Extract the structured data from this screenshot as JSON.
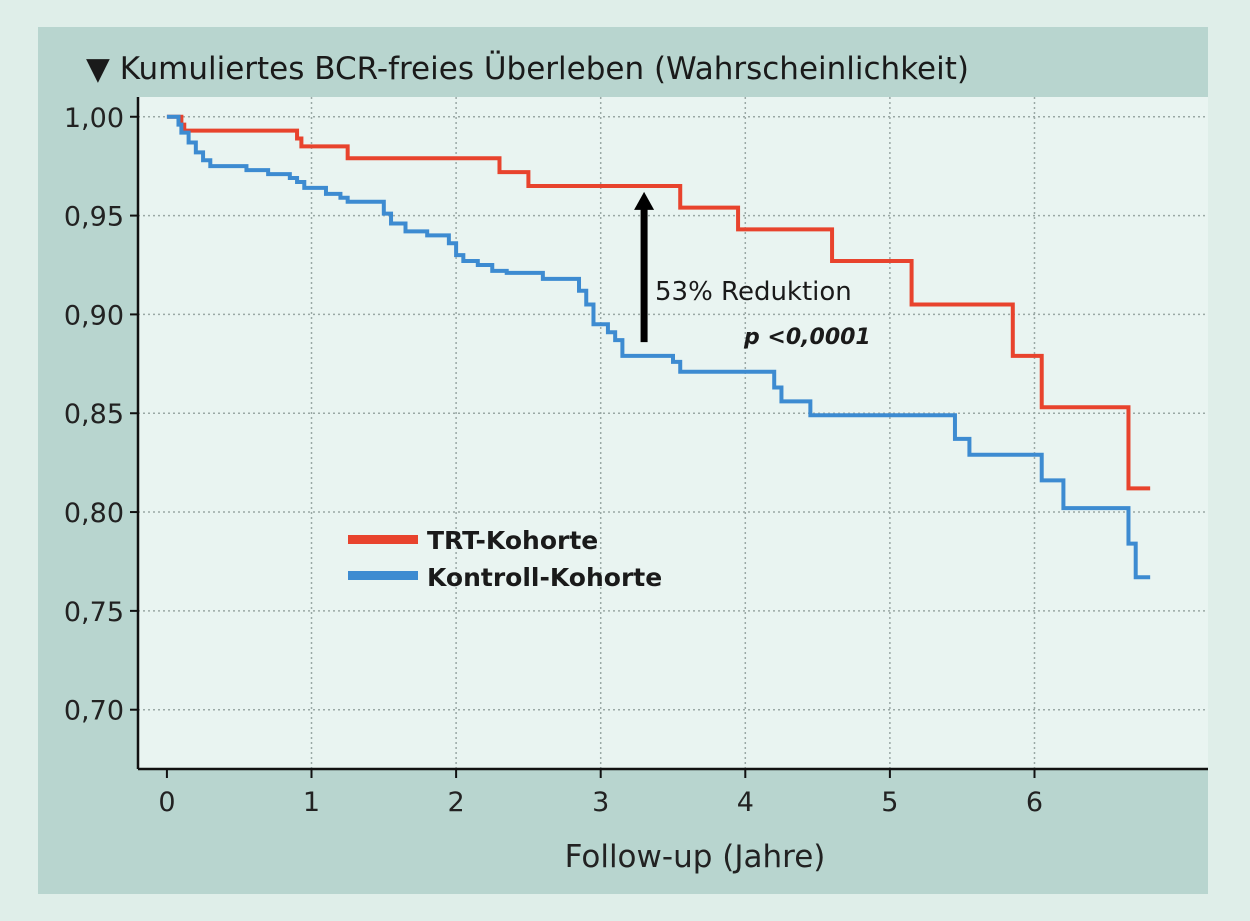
{
  "chart_data": {
    "type": "line",
    "title": "▼ Kumuliertes BCR-freies Überleben (Wahrscheinlichkeit)",
    "xlabel": "Follow-up (Jahre)",
    "ylabel": "",
    "xlim": [
      -0.2,
      7.2
    ],
    "ylim": [
      0.67,
      1.01
    ],
    "x_ticks": [
      0,
      1,
      2,
      3,
      4,
      5,
      6
    ],
    "x_tick_labels": [
      "0",
      "1",
      "2",
      "3",
      "4",
      "5",
      "6"
    ],
    "y_ticks": [
      1.0,
      0.95,
      0.9,
      0.85,
      0.8,
      0.75,
      0.7
    ],
    "y_tick_labels": [
      "1,00",
      "0,95",
      "0,90",
      "0,85",
      "0,80",
      "0,75",
      "0,70"
    ],
    "grid": true,
    "legend_position": "lower-left",
    "series": [
      {
        "name": "TRT-Kohorte",
        "color": "#e8432d",
        "step": true,
        "x": [
          0,
          0.1,
          0.12,
          0.9,
          0.93,
          1.25,
          2.3,
          2.5,
          3.55,
          3.95,
          4.6,
          5.15,
          5.85,
          6.05,
          6.65,
          6.8
        ],
        "y": [
          1.0,
          0.996,
          0.993,
          0.989,
          0.985,
          0.979,
          0.972,
          0.965,
          0.954,
          0.943,
          0.927,
          0.905,
          0.879,
          0.853,
          0.812,
          0.812
        ]
      },
      {
        "name": "Kontroll-Kohorte",
        "color": "#3d8bd1",
        "step": true,
        "x": [
          0,
          0.08,
          0.1,
          0.15,
          0.2,
          0.25,
          0.3,
          0.55,
          0.7,
          0.85,
          0.9,
          0.95,
          1.1,
          1.2,
          1.25,
          1.5,
          1.55,
          1.65,
          1.8,
          1.95,
          2.0,
          2.05,
          2.15,
          2.25,
          2.35,
          2.6,
          2.6,
          2.85,
          2.9,
          2.95,
          3.05,
          3.1,
          3.15,
          3.5,
          3.55,
          4.2,
          4.25,
          4.45,
          5.45,
          5.55,
          6.05,
          6.2,
          6.65,
          6.7,
          6.8
        ],
        "y": [
          1.0,
          0.996,
          0.992,
          0.987,
          0.982,
          0.978,
          0.975,
          0.973,
          0.971,
          0.969,
          0.967,
          0.964,
          0.961,
          0.959,
          0.957,
          0.951,
          0.946,
          0.942,
          0.94,
          0.936,
          0.93,
          0.927,
          0.925,
          0.922,
          0.921,
          0.92,
          0.918,
          0.912,
          0.905,
          0.895,
          0.891,
          0.887,
          0.879,
          0.876,
          0.871,
          0.863,
          0.856,
          0.849,
          0.837,
          0.829,
          0.816,
          0.802,
          0.784,
          0.767,
          0.767
        ]
      }
    ],
    "annotations": {
      "arrow": {
        "x": 3.3,
        "y_from": 0.886,
        "y_to": 0.962
      },
      "reduction_label": "53% Reduktion",
      "p_label": "p <0,0001"
    }
  }
}
